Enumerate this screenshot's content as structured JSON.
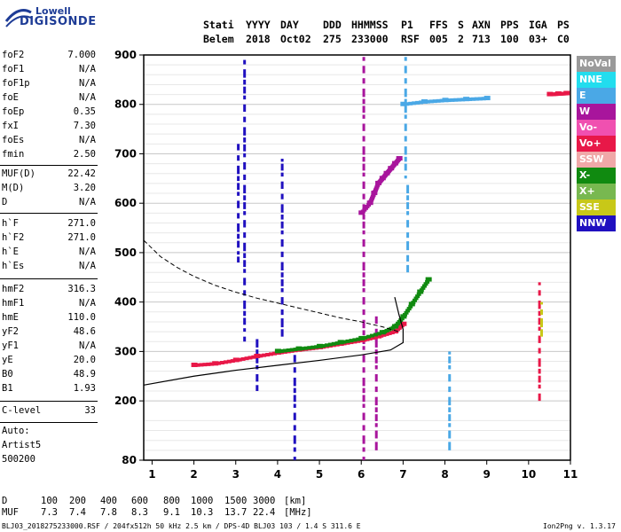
{
  "logo": {
    "line1": "Lowell",
    "line2": "DIGISONDE"
  },
  "header": {
    "labels": [
      "Stati",
      "YYYY",
      "DAY",
      "DDD",
      "HHMMSS",
      "P1",
      "FFS",
      "S",
      "AXN",
      "PPS",
      "IGA",
      "PS"
    ],
    "values": [
      "Belem",
      "2018",
      "Oct02",
      "275",
      "233000",
      "RSF",
      "005",
      "2",
      "713",
      "100",
      "03+",
      "C0"
    ]
  },
  "params": [
    {
      "name": "foF2",
      "value": "7.000"
    },
    {
      "name": "foF1",
      "value": "N/A"
    },
    {
      "name": "foF1p",
      "value": "N/A"
    },
    {
      "name": "foE",
      "value": "N/A"
    },
    {
      "name": "foEp",
      "value": "0.35"
    },
    {
      "name": "fxI",
      "value": "7.30"
    },
    {
      "name": "foEs",
      "value": "N/A"
    },
    {
      "name": "fmin",
      "value": "2.50"
    },
    {
      "name": "MUF(D)",
      "value": "22.42"
    },
    {
      "name": "M(D)",
      "value": "3.20"
    },
    {
      "name": "D",
      "value": "N/A"
    },
    {
      "name": "h`F",
      "value": "271.0"
    },
    {
      "name": "h`F2",
      "value": "271.0"
    },
    {
      "name": "h`E",
      "value": "N/A"
    },
    {
      "name": "h`Es",
      "value": "N/A"
    },
    {
      "name": "hmF2",
      "value": "316.3"
    },
    {
      "name": "hmF1",
      "value": "N/A"
    },
    {
      "name": "hmE",
      "value": "110.0"
    },
    {
      "name": "yF2",
      "value": "48.6"
    },
    {
      "name": "yF1",
      "value": "N/A"
    },
    {
      "name": "yE",
      "value": "20.0"
    },
    {
      "name": "B0",
      "value": "48.9"
    },
    {
      "name": "B1",
      "value": "1.93"
    },
    {
      "name": "C-level",
      "value": "33"
    }
  ],
  "auto": {
    "line1": "Auto:",
    "line2": "Artist5",
    "line3": "500200"
  },
  "legend": [
    {
      "label": "NoVal",
      "color": "#9a9a9a"
    },
    {
      "label": "NNE",
      "color": "#22ddee"
    },
    {
      "label": "E",
      "color": "#4aa8e6"
    },
    {
      "label": "W",
      "color": "#a8159c"
    },
    {
      "label": "Vo-",
      "color": "#f050b0"
    },
    {
      "label": "Vo+",
      "color": "#e81848"
    },
    {
      "label": "SSW",
      "color": "#f0a8a8"
    },
    {
      "label": "X-",
      "color": "#108a10"
    },
    {
      "label": "X+",
      "color": "#78b850"
    },
    {
      "label": "SSE",
      "color": "#c8c818"
    },
    {
      "label": "NNW",
      "color": "#2010c0"
    }
  ],
  "footer": {
    "d_label": "D",
    "d_values": [
      "100",
      "200",
      "400",
      "600",
      "800",
      "1000",
      "1500",
      "3000"
    ],
    "d_unit": "[km]",
    "muf_label": "MUF",
    "muf_values": [
      "7.3",
      "7.4",
      "7.8",
      "8.3",
      "9.1",
      "10.3",
      "13.7",
      "22.4"
    ],
    "muf_unit": "[MHz]",
    "file_info": "BLJ03_2018275233000.RSF / 204fx512h 50 kHz 2.5 km / DPS-4D BLJ03 103 / 1.4 S 311.6 E",
    "version": "Ion2Png v. 1.3.17"
  },
  "chart_data": {
    "type": "scatter",
    "xlim": [
      0.8,
      11.0
    ],
    "ylim": [
      80,
      900
    ],
    "xticks": [
      "1",
      "2",
      "3",
      "4",
      "5",
      "6",
      "7",
      "8",
      "9",
      "10",
      "11"
    ],
    "yticks": [
      "80",
      "200",
      "300",
      "400",
      "500",
      "600",
      "700",
      "800",
      "900"
    ],
    "grid": "horizontal",
    "series": [
      {
        "name": "F2 trace O-mode",
        "color": "#e81848",
        "x": [
          2.0,
          2.5,
          3.0,
          3.5,
          4.0,
          4.5,
          5.0,
          5.5,
          6.0,
          6.4,
          6.8,
          7.0
        ],
        "y": [
          272,
          275,
          282,
          290,
          297,
          303,
          308,
          315,
          322,
          330,
          340,
          355
        ]
      },
      {
        "name": "F2 trace X-mode",
        "color": "#108a10",
        "x": [
          4.0,
          4.5,
          5.0,
          5.5,
          6.0,
          6.5,
          6.8,
          7.0,
          7.2,
          7.4,
          7.6
        ],
        "y": [
          300,
          305,
          310,
          318,
          326,
          338,
          350,
          370,
          395,
          420,
          445
        ]
      },
      {
        "name": "W trace",
        "color": "#a8159c",
        "x": [
          6.0,
          6.2,
          6.3,
          6.4,
          6.5,
          6.6,
          6.7,
          6.8,
          6.9
        ],
        "y": [
          580,
          600,
          620,
          640,
          650,
          660,
          670,
          680,
          690
        ]
      },
      {
        "name": "E echoes",
        "color": "#4aa8e6",
        "x": [
          7.0,
          7.5,
          8.0,
          8.5,
          9.0
        ],
        "y": [
          800,
          805,
          808,
          810,
          812
        ]
      },
      {
        "name": "Vo+ high",
        "color": "#e81848",
        "x": [
          10.5,
          10.7,
          10.9
        ],
        "y": [
          820,
          821,
          822
        ]
      }
    ],
    "profile": {
      "x": [
        0.8,
        2.0,
        3.0,
        4.0,
        5.0,
        6.0,
        6.7,
        7.0,
        7.0,
        6.9,
        6.8
      ],
      "y": [
        232,
        250,
        262,
        272,
        282,
        293,
        303,
        318,
        345,
        375,
        410
      ]
    },
    "model_curve": {
      "x": [
        0.8,
        1.2,
        1.6,
        2.0,
        2.5,
        3.0,
        3.5,
        4.0,
        4.5,
        5.0,
        5.5,
        6.0,
        6.5,
        6.9
      ],
      "y": [
        525,
        492,
        470,
        452,
        434,
        420,
        408,
        398,
        388,
        378,
        368,
        360,
        350,
        340
      ]
    },
    "vertical_streaks": [
      {
        "x": 3.2,
        "y0": 320,
        "y1": 890,
        "color": "#2010c0"
      },
      {
        "x": 3.05,
        "y0": 480,
        "y1": 720,
        "color": "#2010c0"
      },
      {
        "x": 3.5,
        "y0": 220,
        "y1": 330,
        "color": "#2010c0"
      },
      {
        "x": 4.1,
        "y0": 330,
        "y1": 690,
        "color": "#2010c0"
      },
      {
        "x": 4.4,
        "y0": 80,
        "y1": 300,
        "color": "#2010c0"
      },
      {
        "x": 6.05,
        "y0": 80,
        "y1": 900,
        "color": "#a8159c"
      },
      {
        "x": 6.35,
        "y0": 100,
        "y1": 380,
        "color": "#a8159c"
      },
      {
        "x": 7.05,
        "y0": 650,
        "y1": 900,
        "color": "#4aa8e6"
      },
      {
        "x": 7.1,
        "y0": 460,
        "y1": 640,
        "color": "#4aa8e6"
      },
      {
        "x": 8.1,
        "y0": 100,
        "y1": 300,
        "color": "#4aa8e6"
      },
      {
        "x": 10.25,
        "y0": 200,
        "y1": 440,
        "color": "#e81848"
      },
      {
        "x": 10.3,
        "y0": 330,
        "y1": 400,
        "color": "#c8c818"
      }
    ]
  }
}
